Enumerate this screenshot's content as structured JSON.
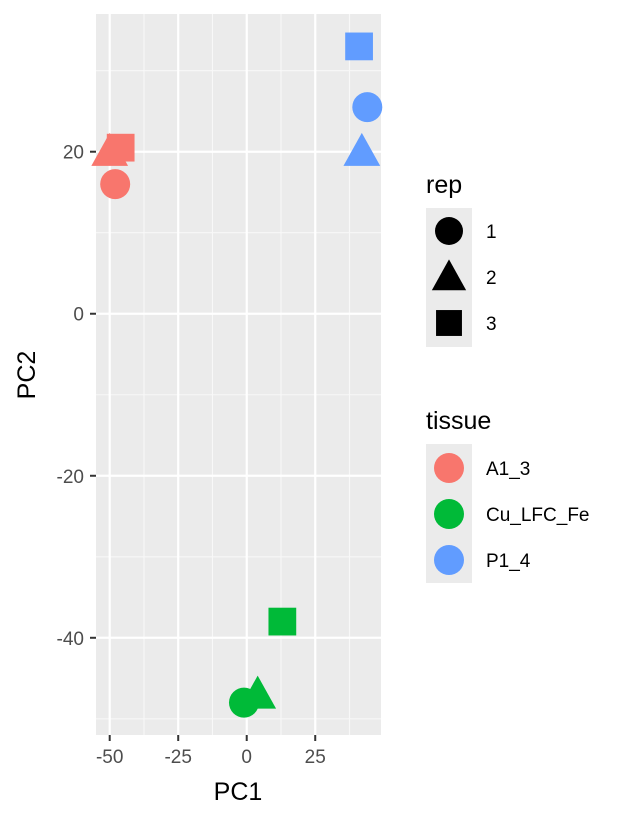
{
  "chart_data": {
    "type": "scatter",
    "title": "",
    "xlabel": "PC1",
    "ylabel": "PC2",
    "xlim": [
      -55,
      49
    ],
    "ylim": [
      -52,
      37
    ],
    "x_ticks": [
      -50,
      -25,
      0,
      25
    ],
    "x_tick_labels": [
      "-50",
      "-25",
      "0",
      "25"
    ],
    "y_ticks": [
      -40,
      -20,
      0,
      20
    ],
    "y_tick_labels": [
      "-40",
      "-20",
      "0",
      "20"
    ],
    "grid": true,
    "points": [
      {
        "x": -48,
        "y": 16,
        "tissue": "A1_3",
        "rep": "1"
      },
      {
        "x": -50,
        "y": 20,
        "tissue": "A1_3",
        "rep": "2"
      },
      {
        "x": -46,
        "y": 20.5,
        "tissue": "A1_3",
        "rep": "3"
      },
      {
        "x": -1,
        "y": -48,
        "tissue": "Cu_LFC_Fe",
        "rep": "1"
      },
      {
        "x": 4,
        "y": -47,
        "tissue": "Cu_LFC_Fe",
        "rep": "2"
      },
      {
        "x": 13,
        "y": -38,
        "tissue": "Cu_LFC_Fe",
        "rep": "3"
      },
      {
        "x": 44,
        "y": 25.5,
        "tissue": "P1_4",
        "rep": "1"
      },
      {
        "x": 42,
        "y": 20,
        "tissue": "P1_4",
        "rep": "2"
      },
      {
        "x": 41,
        "y": 33,
        "tissue": "P1_4",
        "rep": "3"
      }
    ],
    "legend_placement": "right",
    "legends": {
      "shape": {
        "title": "rep",
        "entries": [
          {
            "label": "1",
            "shape": "circle"
          },
          {
            "label": "2",
            "shape": "triangle"
          },
          {
            "label": "3",
            "shape": "square"
          }
        ]
      },
      "color": {
        "title": "tissue",
        "entries": [
          {
            "label": "A1_3",
            "color": "#F8766D"
          },
          {
            "label": "Cu_LFC_Fe",
            "color": "#00BA38"
          },
          {
            "label": "P1_4",
            "color": "#619CFF"
          }
        ]
      }
    }
  }
}
